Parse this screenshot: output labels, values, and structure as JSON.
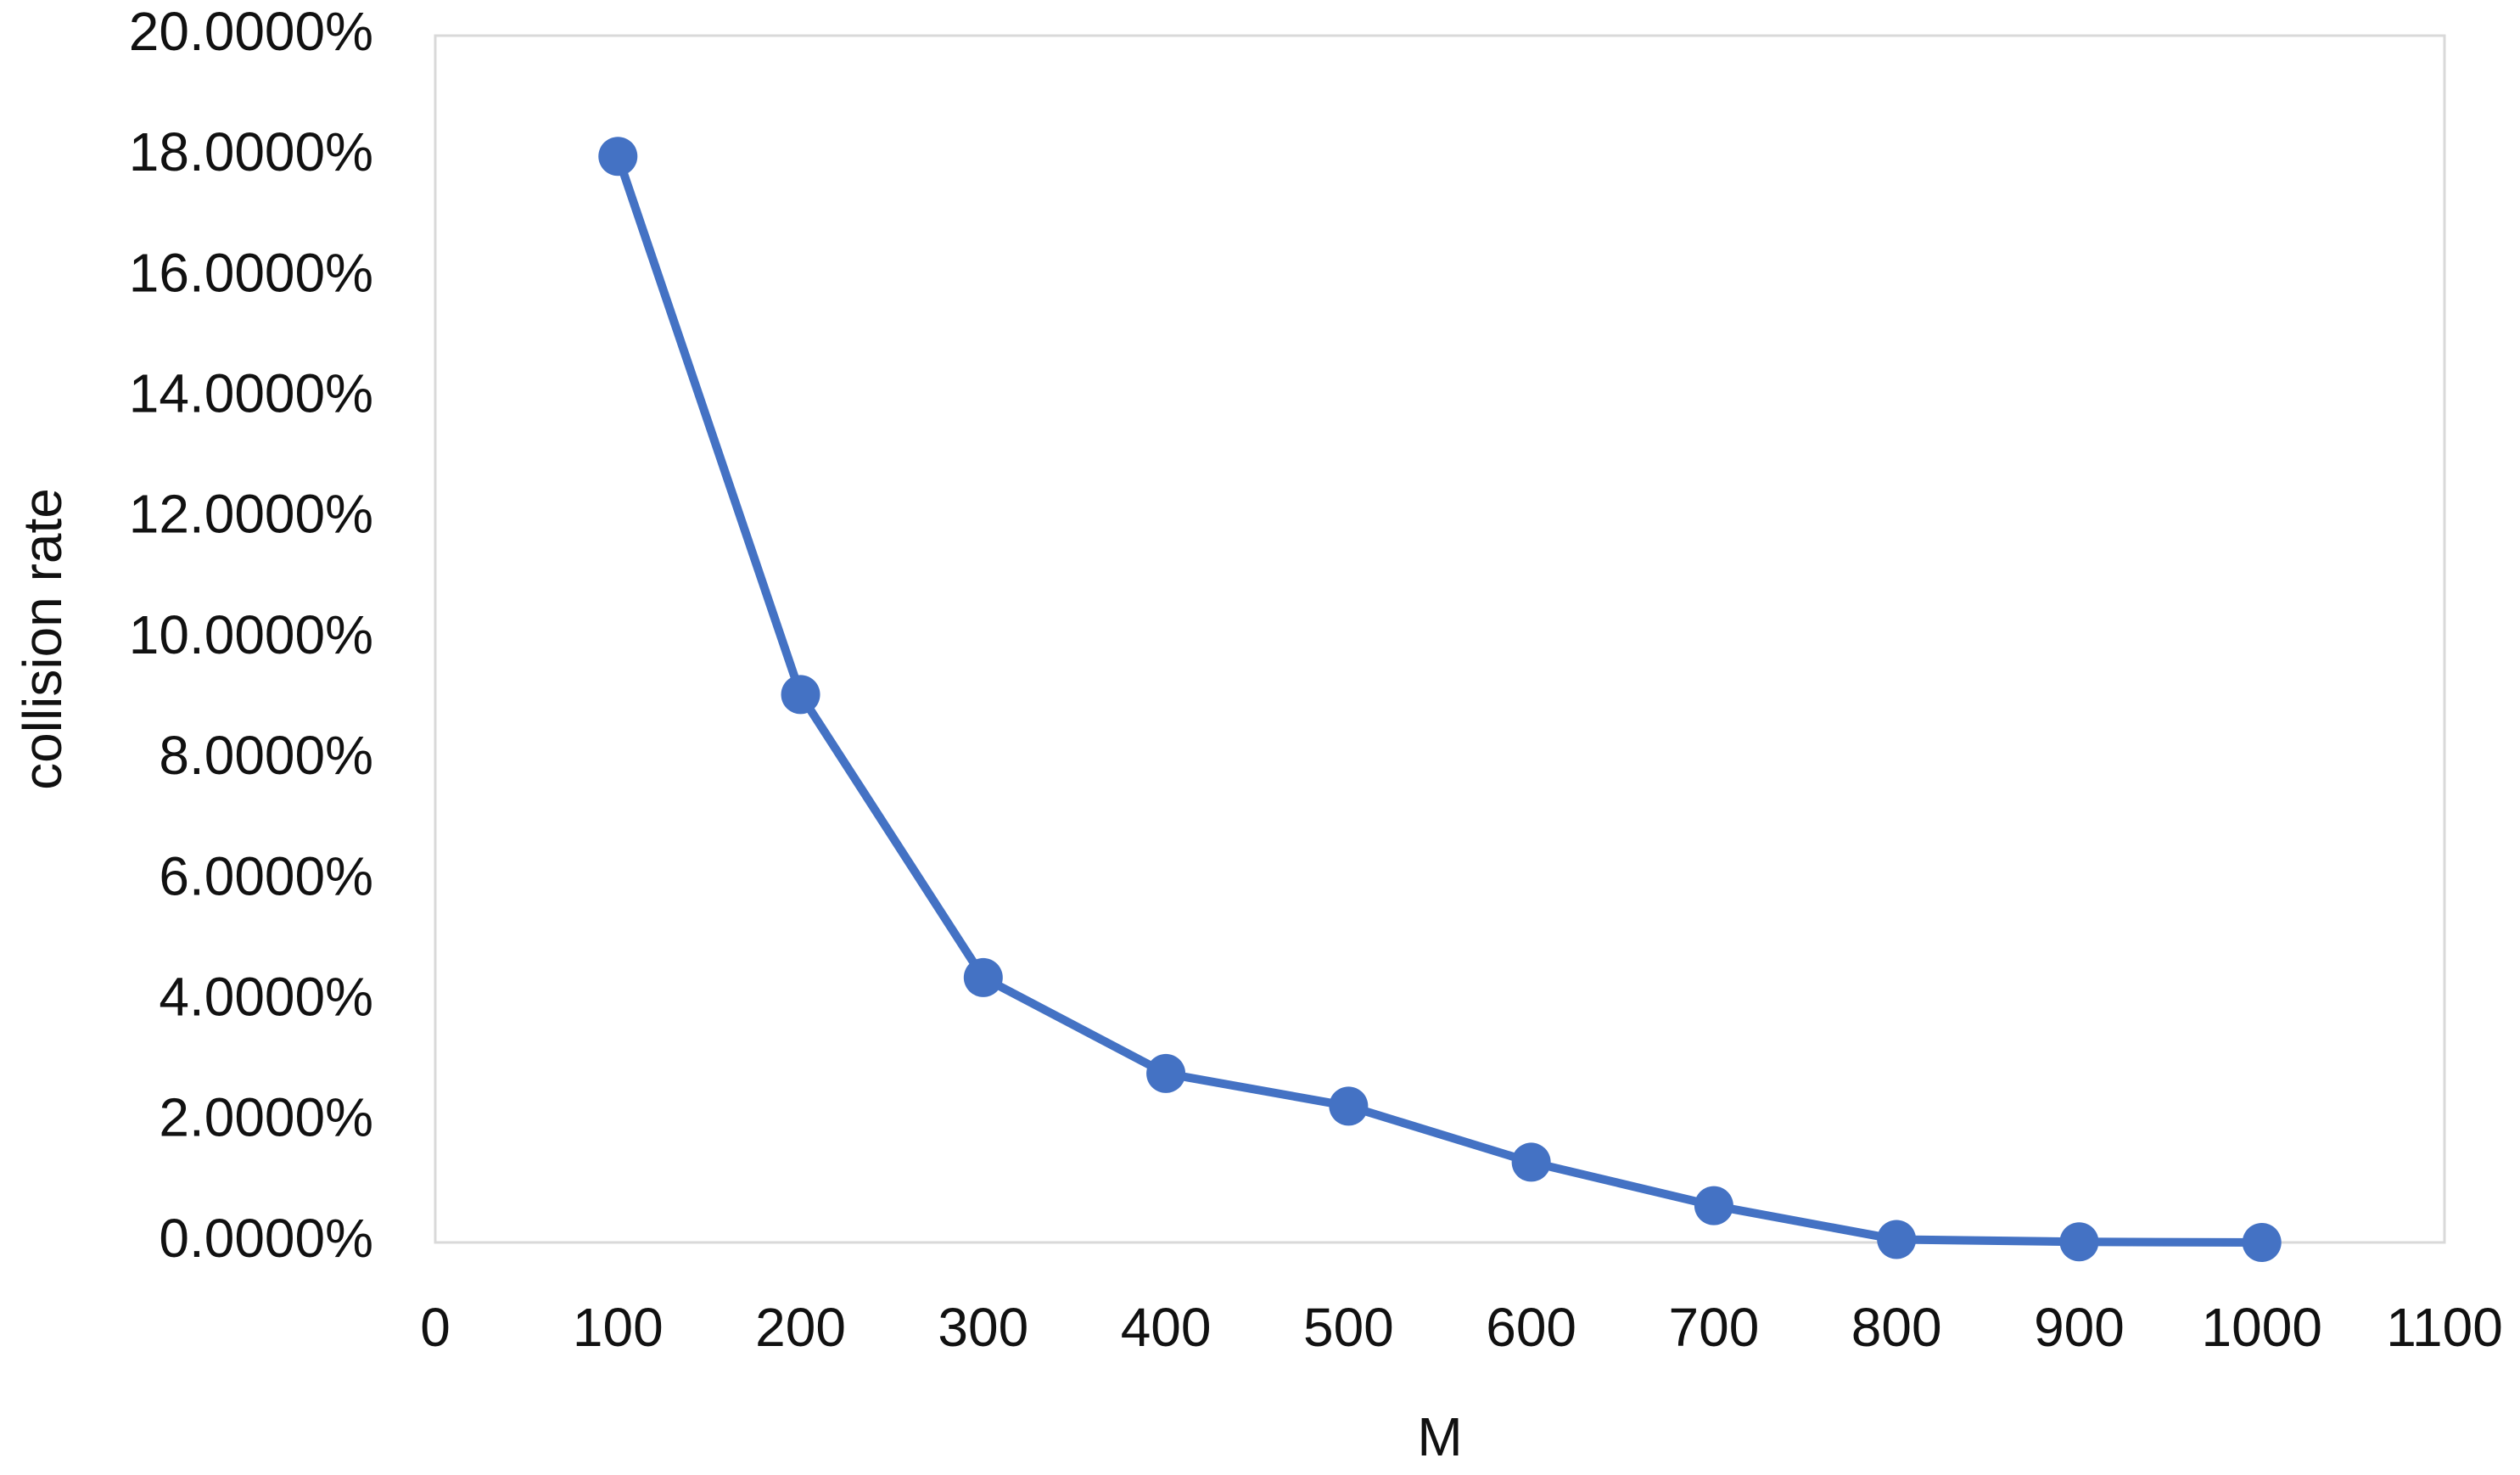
{
  "chart_data": {
    "type": "line",
    "x_label": "M",
    "y_label": "collision rate",
    "x": [
      100,
      200,
      300,
      400,
      500,
      600,
      700,
      800,
      900,
      1000
    ],
    "series": [
      {
        "color": "#4472c4",
        "values": [
          18.0,
          9.08,
          4.39,
          2.8,
          2.26,
          1.33,
          0.61,
          0.05,
          0.01,
          0.0
        ]
      }
    ],
    "xlim": [
      0,
      1100
    ],
    "xticks": [
      0,
      100,
      200,
      300,
      400,
      500,
      600,
      700,
      800,
      900,
      1000,
      1100
    ],
    "ylim": [
      0,
      20
    ],
    "yticks": [
      {
        "value": 0,
        "label": "0.0000%"
      },
      {
        "value": 2,
        "label": "2.0000%"
      },
      {
        "value": 4,
        "label": "4.0000%"
      },
      {
        "value": 6,
        "label": "6.0000%"
      },
      {
        "value": 8,
        "label": "8.0000%"
      },
      {
        "value": 10,
        "label": "10.0000%"
      },
      {
        "value": 12,
        "label": "12.0000%"
      },
      {
        "value": 14,
        "label": "14.0000%"
      },
      {
        "value": 16,
        "label": "16.0000%"
      },
      {
        "value": 18,
        "label": "18.0000%"
      },
      {
        "value": 20,
        "label": "20.0000%"
      }
    ],
    "grid": false
  }
}
